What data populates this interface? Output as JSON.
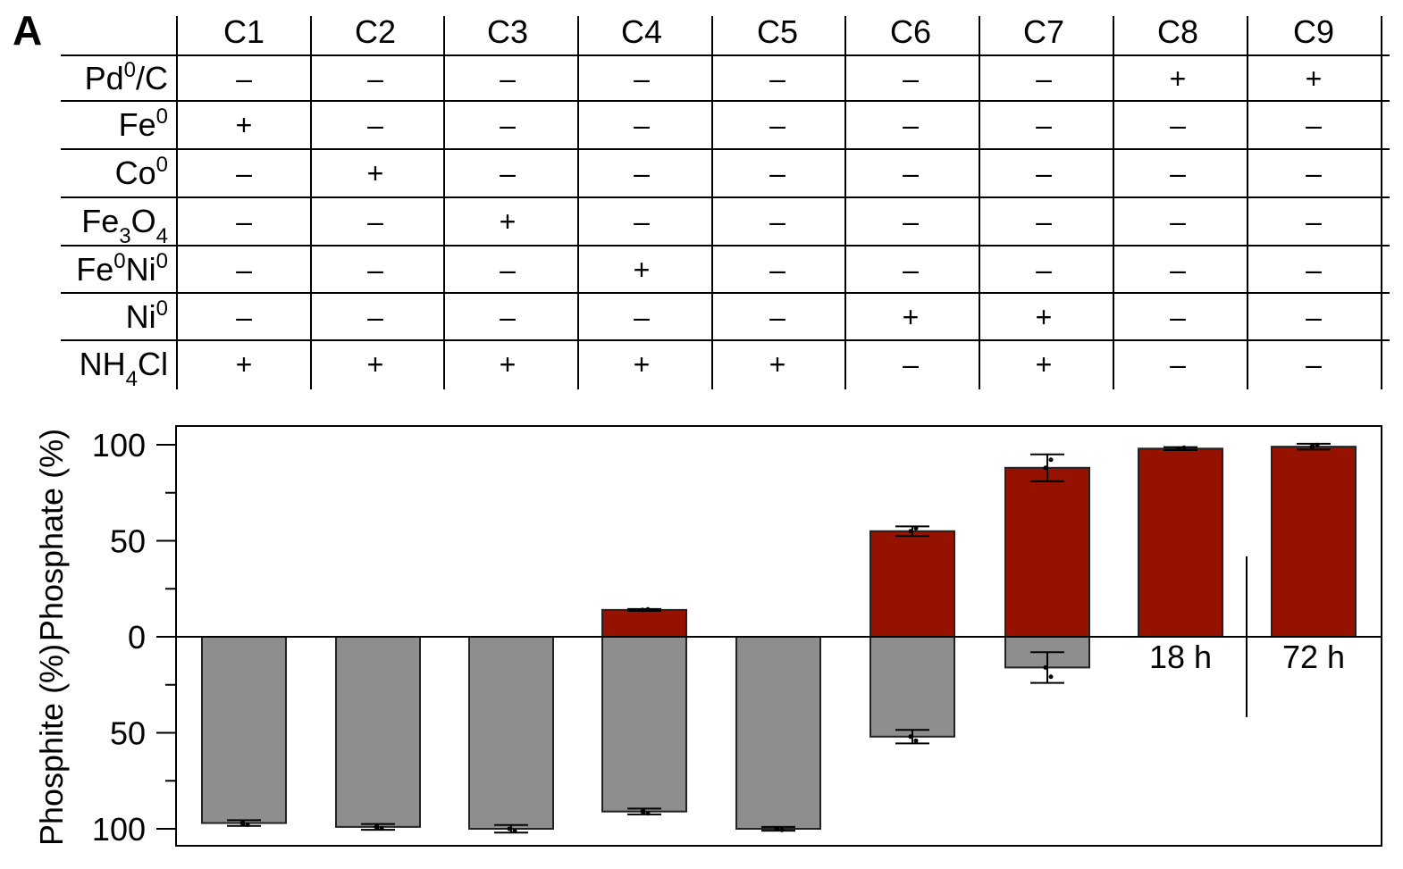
{
  "panel_label": "A",
  "conditions_table": {
    "columns": [
      "C1",
      "C2",
      "C3",
      "C4",
      "C5",
      "C6",
      "C7",
      "C8",
      "C9"
    ],
    "rows": [
      {
        "label_main": "Pd",
        "label_sup": "0",
        "label_tail": "/C",
        "cells": [
          "-",
          "-",
          "-",
          "-",
          "-",
          "-",
          "-",
          "+",
          "+"
        ]
      },
      {
        "label_main": "Fe",
        "label_sup": "0",
        "cells": [
          "+",
          "-",
          "-",
          "-",
          "-",
          "-",
          "-",
          "-",
          "-"
        ]
      },
      {
        "label_main": "Co",
        "label_sup": "0",
        "cells": [
          "-",
          "+",
          "-",
          "-",
          "-",
          "-",
          "-",
          "-",
          "-"
        ]
      },
      {
        "label_main": "Fe",
        "label_sub": "3",
        "label_mid": "O",
        "label_sub2": "4",
        "cells": [
          "-",
          "-",
          "+",
          "-",
          "-",
          "-",
          "-",
          "-",
          "-"
        ]
      },
      {
        "label_main": "Fe",
        "label_sup": "0",
        "label_mid": "Ni",
        "label_sup2": "0",
        "cells": [
          "-",
          "-",
          "-",
          "+",
          "-",
          "-",
          "-",
          "-",
          "-"
        ]
      },
      {
        "label_main": "Ni",
        "label_sup": "0",
        "cells": [
          "-",
          "-",
          "-",
          "-",
          "-",
          "+",
          "+",
          "-",
          "-"
        ]
      },
      {
        "label_main": "NH",
        "label_sub": "4",
        "label_tail": "Cl",
        "cells": [
          "+",
          "+",
          "+",
          "+",
          "+",
          "-",
          "+",
          "-",
          "-"
        ]
      }
    ]
  },
  "chart_data": {
    "type": "bar",
    "categories": [
      "C1",
      "C2",
      "C3",
      "C4",
      "C5",
      "C6",
      "C7",
      "C8",
      "C9"
    ],
    "series": [
      {
        "name": "Phosphate",
        "direction": "up",
        "color": "#951200",
        "values": [
          0,
          0,
          0,
          14,
          0,
          55,
          88,
          98,
          99
        ],
        "errors": [
          0,
          0,
          0,
          0.5,
          0,
          2.5,
          7,
          0.8,
          1.5
        ]
      },
      {
        "name": "Phosphite",
        "direction": "down",
        "color": "#8e8e8e",
        "values": [
          97,
          99,
          100,
          91,
          100,
          52,
          16,
          0,
          0
        ],
        "errors": [
          1.5,
          1.5,
          2,
          1.5,
          1,
          3.5,
          8,
          0,
          0
        ]
      }
    ],
    "ylabel_top": "Phosphate (%)",
    "ylabel_bottom": "Phosphite (%)",
    "ylim": [
      -100,
      100
    ],
    "yticks_labeled": [
      {
        "value": 100,
        "label": "100"
      },
      {
        "value": 50,
        "label": "50"
      },
      {
        "value": 0,
        "label": "0"
      },
      {
        "value": -50,
        "label": "50"
      },
      {
        "value": -100,
        "label": "100"
      }
    ],
    "yticks_minor": [
      75,
      25,
      -25,
      -75
    ],
    "annotations": [
      {
        "category": "C8",
        "text": "18 h"
      },
      {
        "category": "C9",
        "text": "72 h"
      }
    ],
    "grid": false
  }
}
